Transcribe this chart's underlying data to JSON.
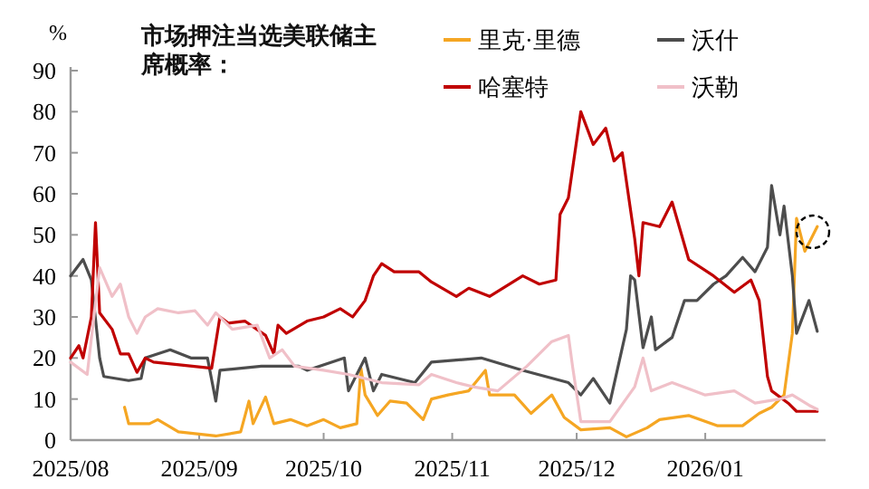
{
  "chart_data": {
    "type": "line",
    "title": "市场押注当选美联储主席概率：",
    "ylabel": "%",
    "xlim": [
      "2025-08-01",
      "2026-01-30"
    ],
    "xticks": [
      {
        "value": "2025-08-01",
        "label": "2025/08"
      },
      {
        "value": "2025-09-01",
        "label": "2025/09"
      },
      {
        "value": "2025-10-01",
        "label": "2025/10"
      },
      {
        "value": "2025-11-01",
        "label": "2025/11"
      },
      {
        "value": "2025-12-01",
        "label": "2025/12"
      },
      {
        "value": "2026-01-01",
        "label": "2026/01"
      }
    ],
    "ylim": [
      0,
      90
    ],
    "yticks": [
      0,
      10,
      20,
      30,
      40,
      50,
      60,
      70,
      80,
      90
    ],
    "grid": false,
    "legend": "top right",
    "line_style": "solid",
    "marker": "none",
    "series": [
      {
        "name": "里克·里德",
        "color": "#f5a623",
        "x": [
          "2025-08-14",
          "2025-08-15",
          "2025-08-20",
          "2025-08-22",
          "2025-08-27",
          "2025-09-05",
          "2025-09-11",
          "2025-09-13",
          "2025-09-14",
          "2025-09-17",
          "2025-09-19",
          "2025-09-23",
          "2025-09-27",
          "2025-10-01",
          "2025-10-05",
          "2025-10-09",
          "2025-10-10",
          "2025-10-11",
          "2025-10-14",
          "2025-10-17",
          "2025-10-21",
          "2025-10-25",
          "2025-10-27",
          "2025-10-31",
          "2025-11-05",
          "2025-11-09",
          "2025-11-10",
          "2025-11-16",
          "2025-11-20",
          "2025-11-25",
          "2025-11-28",
          "2025-12-02",
          "2025-12-09",
          "2025-12-13",
          "2025-12-18",
          "2025-12-21",
          "2025-12-28",
          "2026-01-04",
          "2026-01-10",
          "2026-01-14",
          "2026-01-17",
          "2026-01-20",
          "2026-01-22",
          "2026-01-23",
          "2026-01-25",
          "2026-01-28"
        ],
        "values": [
          8,
          4,
          4,
          5,
          2,
          1,
          2,
          9.5,
          4,
          10.5,
          4,
          5,
          3.5,
          5,
          3,
          4,
          17.5,
          11,
          6,
          9.5,
          9,
          5,
          10,
          11,
          12,
          17,
          11,
          11,
          6.5,
          11,
          5.5,
          2.5,
          3,
          0.8,
          3,
          5,
          6,
          3.5,
          3.5,
          6.5,
          8,
          11,
          26,
          54,
          46,
          52
        ]
      },
      {
        "name": "沃什",
        "color": "#4d4d4d",
        "x": [
          "2025-08-01",
          "2025-08-04",
          "2025-08-06",
          "2025-08-08",
          "2025-08-09",
          "2025-08-15",
          "2025-08-18",
          "2025-08-19",
          "2025-08-25",
          "2025-08-30",
          "2025-09-03",
          "2025-09-05",
          "2025-09-06",
          "2025-09-16",
          "2025-09-25",
          "2025-09-27",
          "2025-10-06",
          "2025-10-07",
          "2025-10-11",
          "2025-10-13",
          "2025-10-15",
          "2025-10-23",
          "2025-10-27",
          "2025-11-08",
          "2025-11-18",
          "2025-11-29",
          "2025-12-02",
          "2025-12-05",
          "2025-12-09",
          "2025-12-13",
          "2025-12-14",
          "2025-12-15",
          "2025-12-17",
          "2025-12-19",
          "2025-12-20",
          "2025-12-24",
          "2025-12-27",
          "2025-12-30",
          "2026-01-03",
          "2026-01-06",
          "2026-01-10",
          "2026-01-13",
          "2026-01-16",
          "2026-01-17",
          "2026-01-19",
          "2026-01-20",
          "2026-01-22",
          "2026-01-23",
          "2026-01-26",
          "2026-01-28"
        ],
        "values": [
          40,
          44,
          39,
          20,
          15.5,
          14.5,
          15,
          20,
          22,
          20,
          20,
          9.5,
          17,
          18,
          18,
          17,
          20,
          12,
          20,
          12,
          16,
          14,
          19,
          20,
          17,
          14,
          11,
          15,
          9,
          27,
          40,
          39,
          22.5,
          30,
          22,
          25,
          34,
          34,
          38,
          40,
          44.5,
          41,
          47,
          62,
          50,
          57,
          40,
          26,
          34,
          26.5
        ]
      },
      {
        "name": "哈塞特",
        "color": "#c00000",
        "x": [
          "2025-08-01",
          "2025-08-03",
          "2025-08-04",
          "2025-08-06",
          "2025-08-07",
          "2025-08-08",
          "2025-08-11",
          "2025-08-13",
          "2025-08-15",
          "2025-08-17",
          "2025-08-19",
          "2025-08-21",
          "2025-09-04",
          "2025-09-06",
          "2025-09-08",
          "2025-09-12",
          "2025-09-17",
          "2025-09-19",
          "2025-09-20",
          "2025-09-22",
          "2025-09-27",
          "2025-10-01",
          "2025-10-05",
          "2025-10-08",
          "2025-10-11",
          "2025-10-13",
          "2025-10-15",
          "2025-10-18",
          "2025-10-24",
          "2025-10-27",
          "2025-11-02",
          "2025-11-05",
          "2025-11-10",
          "2025-11-18",
          "2025-11-22",
          "2025-11-26",
          "2025-11-27",
          "2025-11-29",
          "2025-12-02",
          "2025-12-05",
          "2025-12-08",
          "2025-12-10",
          "2025-12-12",
          "2025-12-15",
          "2025-12-16",
          "2025-12-17",
          "2025-12-21",
          "2025-12-24",
          "2025-12-26",
          "2025-12-28",
          "2026-01-03",
          "2026-01-08",
          "2026-01-12",
          "2026-01-14",
          "2026-01-16",
          "2026-01-17",
          "2026-01-21",
          "2026-01-23",
          "2026-01-26",
          "2026-01-28"
        ],
        "values": [
          20,
          23,
          20,
          30,
          53,
          31,
          27,
          21,
          21,
          16.5,
          20,
          19,
          17.5,
          30,
          28.5,
          29,
          25.5,
          21,
          28,
          26,
          29,
          30,
          32,
          30,
          34,
          40,
          43,
          41,
          41,
          38.5,
          35,
          37,
          35,
          40,
          38,
          39,
          55,
          59,
          80,
          72,
          76,
          68,
          70,
          49,
          40,
          53,
          52,
          58,
          51,
          44,
          40,
          36,
          39,
          34,
          15.5,
          12,
          9,
          7,
          7,
          7
        ]
      },
      {
        "name": "沃勒",
        "color": "#f0c0c8",
        "x": [
          "2025-08-01",
          "2025-08-05",
          "2025-08-08",
          "2025-08-11",
          "2025-08-13",
          "2025-08-15",
          "2025-08-17",
          "2025-08-19",
          "2025-08-22",
          "2025-08-27",
          "2025-08-31",
          "2025-09-03",
          "2025-09-05",
          "2025-09-09",
          "2025-09-15",
          "2025-09-18",
          "2025-09-21",
          "2025-09-24",
          "2025-10-01",
          "2025-10-07",
          "2025-10-15",
          "2025-10-24",
          "2025-10-27",
          "2025-11-02",
          "2025-11-06",
          "2025-11-12",
          "2025-11-19",
          "2025-11-25",
          "2025-11-29",
          "2025-11-30",
          "2025-12-02",
          "2025-12-09",
          "2025-12-15",
          "2025-12-17",
          "2025-12-19",
          "2025-12-24",
          "2026-01-01",
          "2026-01-08",
          "2026-01-13",
          "2026-01-19",
          "2026-01-22",
          "2026-01-26",
          "2026-01-28"
        ],
        "values": [
          19,
          16,
          42,
          35,
          38,
          30,
          26,
          30,
          32,
          31,
          31.5,
          28,
          31,
          27,
          28,
          20,
          22,
          18,
          17,
          16,
          14,
          13.5,
          16,
          14,
          13,
          12,
          18,
          24,
          25.5,
          18,
          4.5,
          4.5,
          13,
          20,
          12,
          14,
          11,
          12,
          9,
          10,
          11,
          8.5,
          7.5
        ]
      }
    ]
  }
}
